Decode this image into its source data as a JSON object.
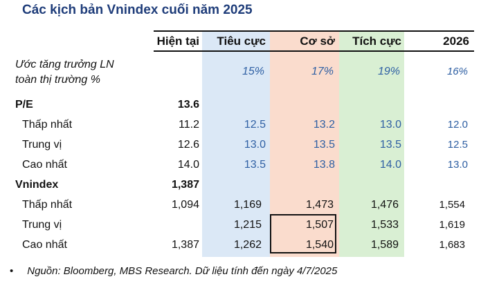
{
  "title": "Các kịch bản Vnindex cuối năm 2025",
  "headers": {
    "current": "Hiện tại",
    "negative": "Tiêu cực",
    "base": "Cơ sở",
    "positive": "Tích cực",
    "year": "2026"
  },
  "growth": {
    "label_line1": "Ước tăng trưởng LN",
    "label_line2": "toàn thị trường %",
    "negative": "15%",
    "base": "17%",
    "positive": "19%",
    "year": "16%"
  },
  "pe": {
    "label": "P/E",
    "current": "13.6",
    "rows": [
      {
        "label": "Thấp nhất",
        "current": "11.2",
        "negative": "12.5",
        "base": "13.2",
        "positive": "13.0",
        "year": "12.0"
      },
      {
        "label": "Trung vị",
        "current": "12.6",
        "negative": "13.0",
        "base": "13.5",
        "positive": "13.5",
        "year": "12.5"
      },
      {
        "label": "Cao nhất",
        "current": "14.0",
        "negative": "13.5",
        "base": "13.8",
        "positive": "14.0",
        "year": "13.0"
      }
    ]
  },
  "vnindex": {
    "label": "Vnindex",
    "current": "1,387",
    "rows": [
      {
        "label": "Thấp nhất",
        "current": "1,094",
        "negative": "1,169",
        "base": "1,473",
        "positive": "1,476",
        "year": "1,554"
      },
      {
        "label": "Trung vị",
        "current": "",
        "negative": "1,215",
        "base": "1,507",
        "positive": "1,533",
        "year": "1,619"
      },
      {
        "label": "Cao nhất",
        "current": "1,387",
        "negative": "1,262",
        "base": "1,540",
        "positive": "1,589",
        "year": "1,683"
      }
    ]
  },
  "footer": {
    "bullet": "•",
    "text": "Nguồn: Bloomberg, MBS Research. Dữ liệu tính đến ngày 4/7/2025"
  },
  "colors": {
    "title": "#1f3d7a",
    "negative_band": "#dbe8f6",
    "base_band": "#fadccd",
    "positive_band": "#d9efd3",
    "scenario_values": "#2e5fa3"
  }
}
